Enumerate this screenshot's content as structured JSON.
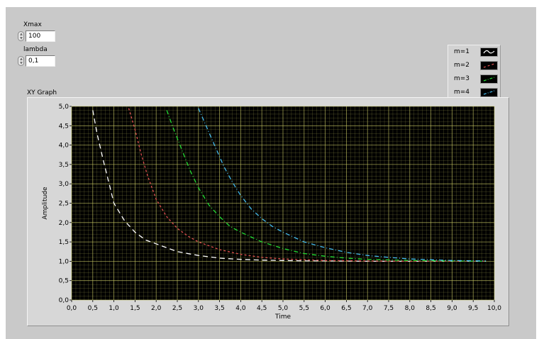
{
  "controls": {
    "xmax": {
      "label": "Xmax",
      "value": "100"
    },
    "lambda": {
      "label": "lambda",
      "value": "0,1"
    }
  },
  "graph": {
    "label": "XY Graph"
  },
  "legend": {
    "items": [
      {
        "name": "m=1",
        "color": "#ffffff"
      },
      {
        "name": "m=2",
        "color": "#e05050"
      },
      {
        "name": "m=3",
        "color": "#22dd33"
      },
      {
        "name": "m=4",
        "color": "#44bbee"
      }
    ]
  },
  "chart_data": {
    "type": "line",
    "xlabel": "Time",
    "ylabel": "Amplitude",
    "xlim": [
      0,
      10
    ],
    "ylim": [
      0,
      5
    ],
    "x_ticks": [
      "0,0",
      "0,5",
      "1,0",
      "1,5",
      "2,0",
      "2,5",
      "3,0",
      "3,5",
      "4,0",
      "4,5",
      "5,0",
      "5,5",
      "6,0",
      "6,5",
      "7,0",
      "7,5",
      "8,0",
      "8,5",
      "9,0",
      "9,5",
      "10,0"
    ],
    "y_ticks": [
      "0,0",
      "0,5",
      "1,0",
      "1,5",
      "2,0",
      "2,5",
      "3,0",
      "3,5",
      "4,0",
      "4,5",
      "5,0"
    ],
    "grid": true,
    "plot_background": "#000000",
    "grid_color": "#c8c864",
    "series": [
      {
        "name": "m=1",
        "color": "#ffffff",
        "x": [
          0.5,
          0.6,
          0.75,
          0.9,
          1.0,
          1.25,
          1.5,
          1.75,
          2.0,
          2.5,
          3.0,
          3.5,
          4.0,
          4.5,
          5.0,
          5.5,
          6.0,
          7.0,
          8.0,
          9.0,
          9.8
        ],
        "y": [
          4.9,
          4.3,
          3.6,
          2.95,
          2.5,
          2.05,
          1.75,
          1.55,
          1.45,
          1.25,
          1.15,
          1.08,
          1.05,
          1.03,
          1.02,
          1.01,
          1.01,
          1.0,
          1.0,
          1.0,
          1.0
        ]
      },
      {
        "name": "m=2",
        "color": "#e05050",
        "x": [
          1.35,
          1.5,
          1.65,
          1.8,
          2.0,
          2.25,
          2.5,
          2.75,
          3.0,
          3.5,
          4.0,
          4.5,
          5.0,
          5.5,
          6.0,
          7.0,
          8.0,
          9.0,
          9.8
        ],
        "y": [
          4.95,
          4.4,
          3.75,
          3.2,
          2.6,
          2.15,
          1.85,
          1.65,
          1.5,
          1.3,
          1.18,
          1.1,
          1.06,
          1.04,
          1.02,
          1.01,
          1.0,
          1.0,
          1.0
        ]
      },
      {
        "name": "m=3",
        "color": "#22dd33",
        "x": [
          2.25,
          2.4,
          2.6,
          2.8,
          3.0,
          3.25,
          3.5,
          3.75,
          4.0,
          4.5,
          5.0,
          5.5,
          6.0,
          6.5,
          7.0,
          8.0,
          9.0,
          9.8
        ],
        "y": [
          4.9,
          4.45,
          3.9,
          3.35,
          2.9,
          2.45,
          2.15,
          1.9,
          1.75,
          1.5,
          1.33,
          1.2,
          1.13,
          1.08,
          1.05,
          1.02,
          1.01,
          1.0
        ]
      },
      {
        "name": "m=4",
        "color": "#44bbee",
        "x": [
          3.0,
          3.2,
          3.4,
          3.6,
          3.8,
          4.0,
          4.25,
          4.5,
          4.75,
          5.0,
          5.5,
          6.0,
          6.5,
          7.0,
          7.5,
          8.0,
          8.5,
          9.0,
          9.8
        ],
        "y": [
          4.95,
          4.45,
          3.95,
          3.45,
          3.05,
          2.7,
          2.35,
          2.1,
          1.9,
          1.75,
          1.5,
          1.35,
          1.23,
          1.15,
          1.1,
          1.06,
          1.04,
          1.02,
          1.01
        ]
      }
    ]
  }
}
